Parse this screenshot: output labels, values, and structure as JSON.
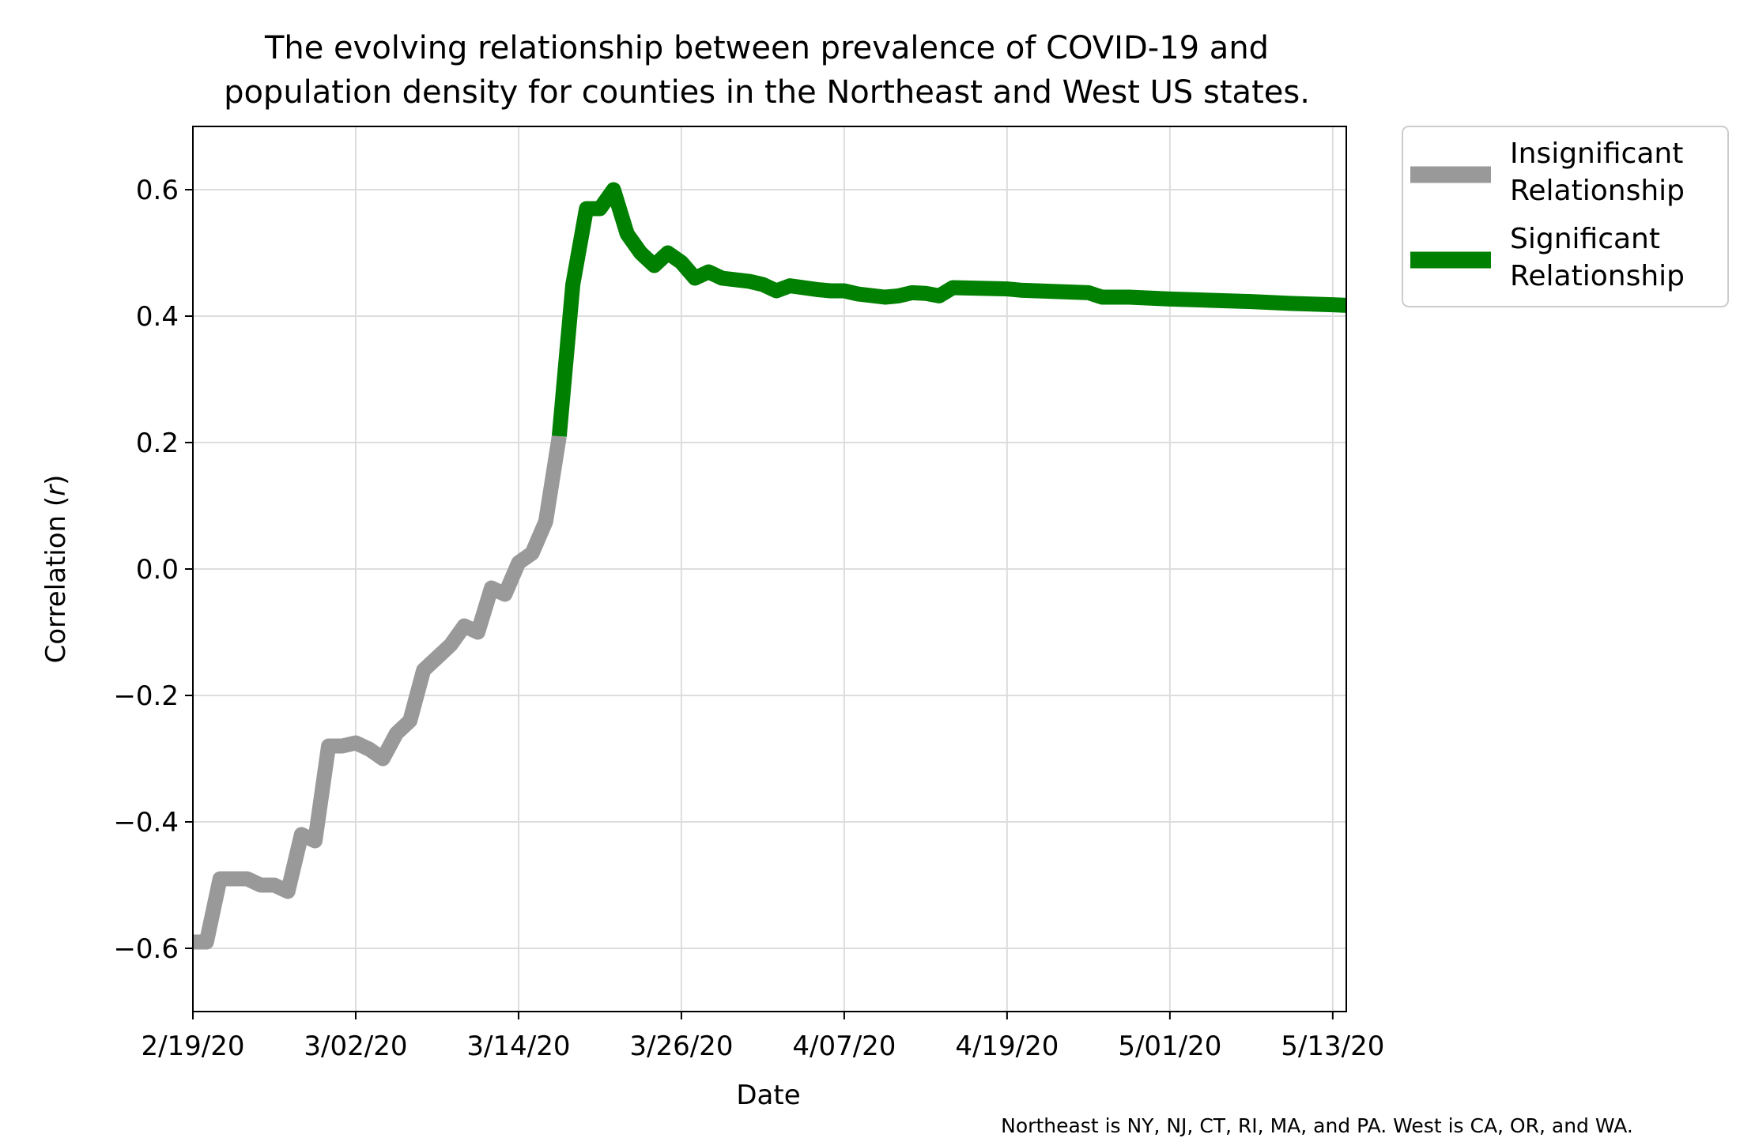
{
  "chart_data": {
    "type": "line",
    "title": "The evolving relationship between prevalence of COVID-19 and population density for counties in the Northeast and West US states.",
    "title_lines": [
      "The evolving relationship between prevalence of COVID-19 and",
      "population density for counties in the Northeast and West US states."
    ],
    "xlabel": "Date",
    "ylabel": "Correlation (",
    "ylabel_italic": "r",
    "ylabel_close": ")",
    "xlim": [
      "2020-02-19",
      "2020-05-14"
    ],
    "ylim": [
      -0.7,
      0.7
    ],
    "x_ticks": [
      {
        "date": "2020-02-19",
        "label": "2/19/20"
      },
      {
        "date": "2020-03-02",
        "label": "3/02/20"
      },
      {
        "date": "2020-03-14",
        "label": "3/14/20"
      },
      {
        "date": "2020-03-26",
        "label": "3/26/20"
      },
      {
        "date": "2020-04-07",
        "label": "4/07/20"
      },
      {
        "date": "2020-04-19",
        "label": "4/19/20"
      },
      {
        "date": "2020-05-01",
        "label": "5/01/20"
      },
      {
        "date": "2020-05-13",
        "label": "5/13/20"
      }
    ],
    "y_ticks": [
      {
        "value": -0.6,
        "label": "−0.6"
      },
      {
        "value": -0.4,
        "label": "−0.4"
      },
      {
        "value": -0.2,
        "label": "−0.2"
      },
      {
        "value": 0.0,
        "label": "0.0"
      },
      {
        "value": 0.2,
        "label": "0.2"
      },
      {
        "value": 0.4,
        "label": "0.4"
      },
      {
        "value": 0.6,
        "label": "0.6"
      }
    ],
    "grid": true,
    "legend_position": "outside-top-right",
    "series": [
      {
        "name": "Insignificant Relationship",
        "legend_lines": [
          "Insignificant",
          "Relationship"
        ],
        "color": "#999999",
        "points": [
          [
            "2020-02-19",
            -0.59
          ],
          [
            "2020-02-20",
            -0.59
          ],
          [
            "2020-02-21",
            -0.49
          ],
          [
            "2020-02-22",
            -0.49
          ],
          [
            "2020-02-23",
            -0.49
          ],
          [
            "2020-02-24",
            -0.5
          ],
          [
            "2020-02-25",
            -0.5
          ],
          [
            "2020-02-26",
            -0.51
          ],
          [
            "2020-02-27",
            -0.42
          ],
          [
            "2020-02-28",
            -0.43
          ],
          [
            "2020-02-29",
            -0.28
          ],
          [
            "2020-03-01",
            -0.28
          ],
          [
            "2020-03-02",
            -0.275
          ],
          [
            "2020-03-03",
            -0.285
          ],
          [
            "2020-03-04",
            -0.3
          ],
          [
            "2020-03-05",
            -0.26
          ],
          [
            "2020-03-06",
            -0.24
          ],
          [
            "2020-03-07",
            -0.16
          ],
          [
            "2020-03-08",
            -0.14
          ],
          [
            "2020-03-09",
            -0.12
          ],
          [
            "2020-03-10",
            -0.09
          ],
          [
            "2020-03-11",
            -0.1
          ],
          [
            "2020-03-12",
            -0.03
          ],
          [
            "2020-03-13",
            -0.04
          ],
          [
            "2020-03-14",
            0.01
          ],
          [
            "2020-03-15",
            0.025
          ],
          [
            "2020-03-16",
            0.075
          ],
          [
            "2020-03-17",
            0.21
          ]
        ]
      },
      {
        "name": "Significant Relationship",
        "legend_lines": [
          "Significant",
          "Relationship"
        ],
        "color": "#008000",
        "points": [
          [
            "2020-03-17",
            0.21
          ],
          [
            "2020-03-18",
            0.45
          ],
          [
            "2020-03-19",
            0.57
          ],
          [
            "2020-03-20",
            0.57
          ],
          [
            "2020-03-21",
            0.6
          ],
          [
            "2020-03-22",
            0.53
          ],
          [
            "2020-03-23",
            0.5
          ],
          [
            "2020-03-24",
            0.48
          ],
          [
            "2020-03-25",
            0.5
          ],
          [
            "2020-03-26",
            0.485
          ],
          [
            "2020-03-27",
            0.46
          ],
          [
            "2020-03-28",
            0.47
          ],
          [
            "2020-03-29",
            0.46
          ],
          [
            "2020-03-31",
            0.455
          ],
          [
            "2020-04-01",
            0.45
          ],
          [
            "2020-04-02",
            0.44
          ],
          [
            "2020-04-03",
            0.448
          ],
          [
            "2020-04-04",
            0.445
          ],
          [
            "2020-04-05",
            0.442
          ],
          [
            "2020-04-06",
            0.44
          ],
          [
            "2020-04-07",
            0.44
          ],
          [
            "2020-04-08",
            0.435
          ],
          [
            "2020-04-10",
            0.43
          ],
          [
            "2020-04-11",
            0.432
          ],
          [
            "2020-04-12",
            0.437
          ],
          [
            "2020-04-13",
            0.436
          ],
          [
            "2020-04-14",
            0.432
          ],
          [
            "2020-04-15",
            0.445
          ],
          [
            "2020-04-19",
            0.443
          ],
          [
            "2020-04-20",
            0.441
          ],
          [
            "2020-04-25",
            0.437
          ],
          [
            "2020-04-26",
            0.43
          ],
          [
            "2020-04-28",
            0.43
          ],
          [
            "2020-05-01",
            0.427
          ],
          [
            "2020-05-04",
            0.425
          ],
          [
            "2020-05-07",
            0.423
          ],
          [
            "2020-05-10",
            0.42
          ],
          [
            "2020-05-13",
            0.418
          ],
          [
            "2020-05-14",
            0.417
          ]
        ]
      }
    ],
    "annotation": "Northeast is NY, NJ, CT, RI, MA, and PA. West is CA, OR, and WA."
  }
}
